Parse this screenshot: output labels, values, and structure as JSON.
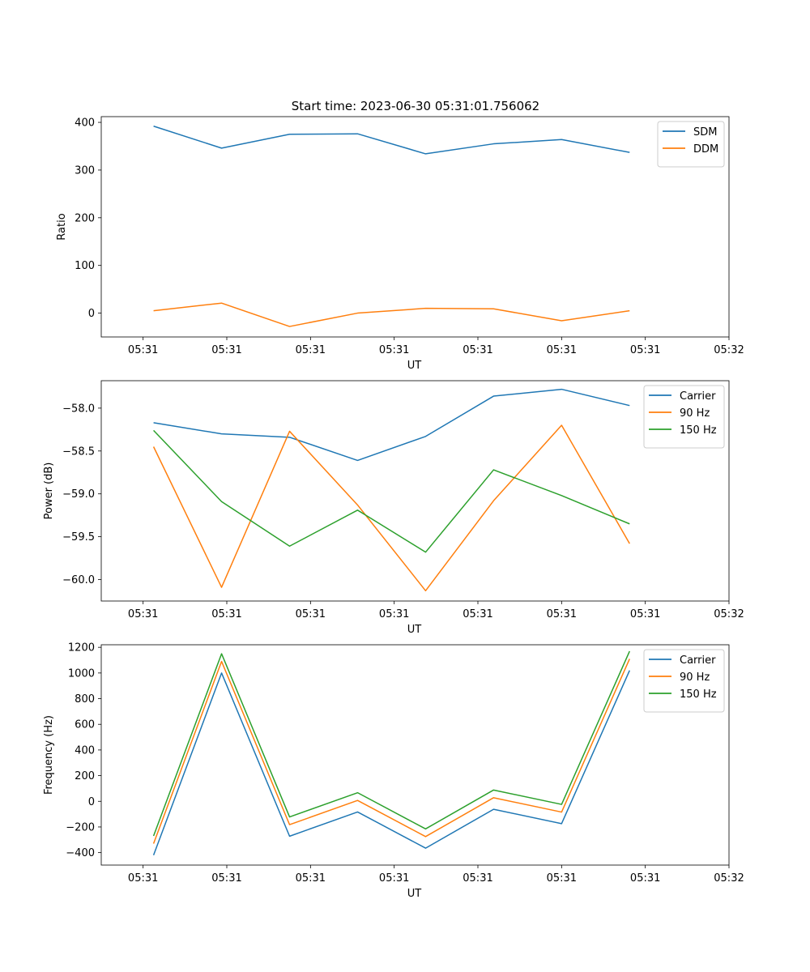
{
  "figure_title": "Start time: 2023-06-30 05:31:01.756062",
  "colors": {
    "series1": "#1f77b4",
    "series2": "#ff7f0e",
    "series3": "#2ca02c"
  },
  "chart_data": [
    {
      "type": "line",
      "title": "Start time: 2023-06-30 05:31:01.756062",
      "xlabel": "UT",
      "ylabel": "Ratio",
      "x_tick_labels": [
        "05:31",
        "05:31",
        "05:31",
        "05:31",
        "05:31",
        "05:31",
        "05:31",
        "05:32"
      ],
      "y_ticks": [
        0,
        100,
        200,
        300,
        400
      ],
      "ylim": [
        -50,
        412
      ],
      "x": [
        0.5,
        1.15,
        1.8,
        2.45,
        3.1,
        3.75,
        4.4,
        5.05
      ],
      "xlim": [
        0,
        6
      ],
      "grid": false,
      "legend_position": "top-right",
      "series": [
        {
          "name": "SDM",
          "values": [
            392,
            346,
            375,
            376,
            334,
            355,
            364,
            337
          ]
        },
        {
          "name": "DDM",
          "values": [
            5,
            21,
            -28,
            0,
            10,
            9,
            -16,
            5
          ]
        }
      ]
    },
    {
      "type": "line",
      "xlabel": "UT",
      "ylabel": "Power (dB)",
      "x_tick_labels": [
        "05:31",
        "05:31",
        "05:31",
        "05:31",
        "05:31",
        "05:31",
        "05:31",
        "05:32"
      ],
      "y_ticks": [
        -60.0,
        -59.5,
        -59.0,
        -58.5,
        -58.0
      ],
      "ylim": [
        -60.25,
        -57.68
      ],
      "x": [
        0.5,
        1.15,
        1.8,
        2.45,
        3.1,
        3.75,
        4.4,
        5.05
      ],
      "xlim": [
        0,
        6
      ],
      "grid": false,
      "legend_position": "top-right",
      "series": [
        {
          "name": "Carrier",
          "values": [
            -58.17,
            -58.3,
            -58.34,
            -58.61,
            -58.33,
            -57.86,
            -57.78,
            -57.97
          ]
        },
        {
          "name": "90 Hz",
          "values": [
            -58.45,
            -60.09,
            -58.27,
            -59.13,
            -60.13,
            -59.08,
            -58.2,
            -59.58
          ]
        },
        {
          "name": "150 Hz",
          "values": [
            -58.26,
            -59.09,
            -59.61,
            -59.19,
            -59.68,
            -58.72,
            -59.02,
            -59.35
          ]
        }
      ]
    },
    {
      "type": "line",
      "xlabel": "UT",
      "ylabel": "Frequency (Hz)",
      "x_tick_labels": [
        "05:31",
        "05:31",
        "05:31",
        "05:31",
        "05:31",
        "05:31",
        "05:31",
        "05:32"
      ],
      "y_ticks": [
        -400,
        -200,
        0,
        200,
        400,
        600,
        800,
        1000,
        1200
      ],
      "ylim": [
        -497,
        1220
      ],
      "x": [
        0.5,
        1.15,
        1.8,
        2.45,
        3.1,
        3.75,
        4.4,
        5.05
      ],
      "xlim": [
        0,
        6
      ],
      "grid": false,
      "legend_position": "top-right",
      "series": [
        {
          "name": "Carrier",
          "values": [
            -420,
            1000,
            -272,
            -83,
            -365,
            -62,
            -174,
            1020
          ]
        },
        {
          "name": "90 Hz",
          "values": [
            -330,
            1090,
            -182,
            7,
            -275,
            28,
            -84,
            1110
          ]
        },
        {
          "name": "150 Hz",
          "values": [
            -270,
            1150,
            -122,
            67,
            -215,
            88,
            -24,
            1170
          ]
        }
      ]
    }
  ]
}
